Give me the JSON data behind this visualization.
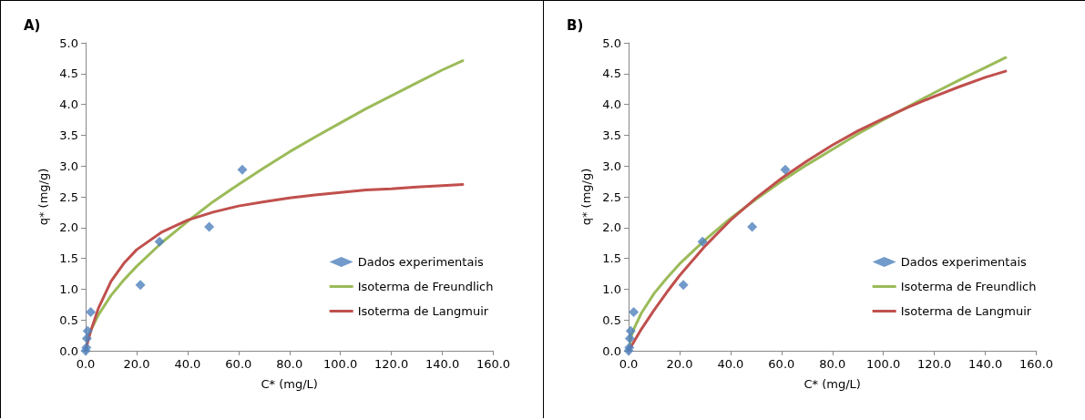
{
  "chart_data": [
    {
      "type": "scatter",
      "title": "A)",
      "xlabel": "C* (mg/L)",
      "ylabel": "q* (mg/g)",
      "marker": "diamond",
      "grid": false,
      "legend": "right",
      "xlim": [
        0,
        160
      ],
      "xticks": [
        {
          "value": 0,
          "label": "0.0"
        },
        {
          "value": 20,
          "label": "20.0"
        },
        {
          "value": 40,
          "label": "40.0"
        },
        {
          "value": 60,
          "label": "60.0"
        },
        {
          "value": 80,
          "label": "80.0"
        },
        {
          "value": 100,
          "label": "100.0"
        },
        {
          "value": 120,
          "label": "120.0"
        },
        {
          "value": 140,
          "label": "140.0"
        },
        {
          "value": 160,
          "label": "160.0"
        }
      ],
      "ylim": [
        0,
        5
      ],
      "yticks": [
        {
          "value": 0,
          "label": "0.0"
        },
        {
          "value": 0.5,
          "label": "0.5"
        },
        {
          "value": 1,
          "label": "1.0"
        },
        {
          "value": 1.5,
          "label": "1.5"
        },
        {
          "value": 2,
          "label": "2.0"
        },
        {
          "value": 2.5,
          "label": "2.5"
        },
        {
          "value": 3,
          "label": "3.0"
        },
        {
          "value": 3.5,
          "label": "3.5"
        },
        {
          "value": 4,
          "label": "4.0"
        },
        {
          "value": 4.5,
          "label": "4.5"
        },
        {
          "value": 5,
          "label": "5.0"
        }
      ],
      "series": [
        {
          "name": "Dados experimentais",
          "color": "#4f81bd",
          "x": [
            0,
            0.3,
            0.5,
            0.8,
            2,
            21.5,
            29,
            48.5,
            61.5
          ],
          "values": [
            0,
            0.05,
            0.2,
            0.32,
            0.63,
            1.07,
            1.77,
            2.01,
            2.94
          ]
        },
        {
          "name": "Isoterma de Freundlich",
          "type": "line",
          "marker": "none",
          "color": "#9bbb59",
          "x": [
            0,
            1,
            2,
            5,
            10,
            15,
            20,
            30,
            40,
            50,
            60,
            70,
            80,
            90,
            100,
            110,
            120,
            130,
            140,
            148
          ],
          "values": [
            0,
            0.22,
            0.33,
            0.58,
            0.9,
            1.15,
            1.37,
            1.76,
            2.1,
            2.42,
            2.7,
            2.97,
            3.23,
            3.47,
            3.7,
            3.93,
            4.14,
            4.35,
            4.56,
            4.71
          ]
        },
        {
          "name": "Isoterma de Langmuir",
          "type": "line",
          "marker": "none",
          "color": "#c0504d",
          "x": [
            0,
            1,
            2,
            5,
            10,
            15,
            20,
            30,
            40,
            50,
            60,
            70,
            80,
            90,
            100,
            110,
            120,
            130,
            140,
            148
          ],
          "values": [
            0,
            0.17,
            0.32,
            0.69,
            1.13,
            1.42,
            1.64,
            1.93,
            2.12,
            2.25,
            2.35,
            2.42,
            2.48,
            2.53,
            2.57,
            2.61,
            2.63,
            2.66,
            2.68,
            2.7
          ]
        }
      ]
    },
    {
      "type": "scatter",
      "title": "B)",
      "xlabel": "C* (mg/L)",
      "ylabel": "q* (mg/g)",
      "marker": "diamond",
      "grid": false,
      "legend": "right",
      "xlim": [
        0,
        160
      ],
      "xticks": [
        {
          "value": 0,
          "label": "0.0"
        },
        {
          "value": 20,
          "label": "20.0"
        },
        {
          "value": 40,
          "label": "40.0"
        },
        {
          "value": 60,
          "label": "60.0"
        },
        {
          "value": 80,
          "label": "80.0"
        },
        {
          "value": 100,
          "label": "100.0"
        },
        {
          "value": 120,
          "label": "120.0"
        },
        {
          "value": 140,
          "label": "140.0"
        },
        {
          "value": 160,
          "label": "160.0"
        }
      ],
      "ylim": [
        0,
        5
      ],
      "yticks": [
        {
          "value": 0,
          "label": "0.0"
        },
        {
          "value": 0.5,
          "label": "0.5"
        },
        {
          "value": 1,
          "label": "1.0"
        },
        {
          "value": 1.5,
          "label": "1.5"
        },
        {
          "value": 2,
          "label": "2.0"
        },
        {
          "value": 2.5,
          "label": "2.5"
        },
        {
          "value": 3,
          "label": "3.0"
        },
        {
          "value": 3.5,
          "label": "3.5"
        },
        {
          "value": 4,
          "label": "4.0"
        },
        {
          "value": 4.5,
          "label": "4.5"
        },
        {
          "value": 5,
          "label": "5.0"
        }
      ],
      "series": [
        {
          "name": "Dados experimentais",
          "color": "#4f81bd",
          "x": [
            0,
            0.3,
            0.5,
            0.8,
            2,
            21.5,
            29,
            48.5,
            61.5
          ],
          "values": [
            0,
            0.05,
            0.2,
            0.32,
            0.63,
            1.07,
            1.77,
            2.01,
            2.94
          ]
        },
        {
          "name": "Isoterma de Freundlich",
          "type": "line",
          "marker": "none",
          "color": "#9bbb59",
          "x": [
            0,
            1,
            2,
            5,
            10,
            15,
            20,
            30,
            40,
            50,
            60,
            70,
            80,
            90,
            100,
            110,
            120,
            130,
            140,
            148
          ],
          "values": [
            0,
            0.23,
            0.35,
            0.61,
            0.93,
            1.18,
            1.41,
            1.8,
            2.15,
            2.46,
            2.75,
            3.02,
            3.27,
            3.52,
            3.75,
            3.97,
            4.19,
            4.4,
            4.6,
            4.76
          ]
        },
        {
          "name": "Isoterma de Langmuir",
          "type": "line",
          "marker": "none",
          "color": "#c0504d",
          "x": [
            0,
            1,
            2,
            5,
            10,
            15,
            20,
            30,
            40,
            50,
            60,
            70,
            80,
            90,
            100,
            110,
            120,
            130,
            140,
            148
          ],
          "values": [
            0,
            0.07,
            0.14,
            0.35,
            0.66,
            0.95,
            1.22,
            1.7,
            2.12,
            2.48,
            2.8,
            3.08,
            3.34,
            3.57,
            3.77,
            3.96,
            4.13,
            4.29,
            4.44,
            4.54
          ]
        }
      ]
    }
  ]
}
